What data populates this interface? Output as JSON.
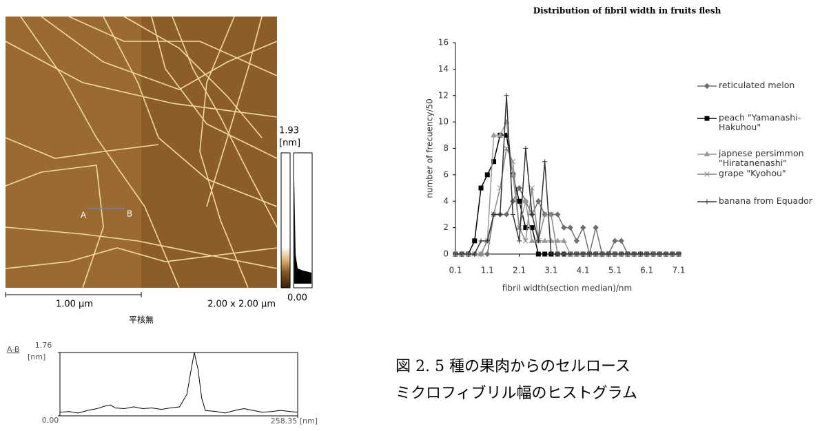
{
  "chart_data": [
    {
      "type": "line",
      "title": "Distribution of fibril width in fruits flesh",
      "x_label": "fibril width(section median)/nm",
      "y_label": "number of frecuency/50",
      "x": [
        0.1,
        0.3,
        0.5,
        0.7,
        0.9,
        1.1,
        1.3,
        1.5,
        1.7,
        1.9,
        2.1,
        2.3,
        2.5,
        2.7,
        2.9,
        3.1,
        3.3,
        3.5,
        3.7,
        3.9,
        4.1,
        4.3,
        4.5,
        4.7,
        4.9,
        5.1,
        5.3,
        5.5,
        5.7,
        5.9,
        6.1,
        6.3,
        6.5,
        6.7,
        6.9,
        7.1
      ],
      "xlim": [
        0.1,
        7.1
      ],
      "xticks": [
        0.1,
        1.1,
        2.1,
        3.1,
        4.1,
        5.1,
        6.1,
        7.1
      ],
      "ylim": [
        0,
        16
      ],
      "yticks": [
        0,
        2,
        4,
        6,
        8,
        10,
        12,
        14,
        16
      ],
      "series": [
        {
          "name": "reticulated melon",
          "color": "#6e6e6e",
          "marker": "diamond",
          "values": [
            0,
            0,
            0,
            0,
            0,
            0,
            3,
            3,
            3,
            4,
            5,
            4,
            3,
            4,
            3,
            3,
            3,
            2,
            2,
            1,
            2,
            0,
            2,
            0,
            0,
            1,
            1,
            0,
            0,
            0,
            0,
            0,
            0,
            0,
            0,
            0
          ]
        },
        {
          "name": "peach \"Yamanashi-Hakuhou\"",
          "color": "#000000",
          "marker": "square",
          "values": [
            0,
            0,
            0,
            1,
            5,
            6,
            7,
            9,
            9,
            6,
            4,
            2,
            2,
            0,
            0,
            0,
            0,
            0,
            0,
            0,
            0,
            0,
            0,
            0,
            0,
            0,
            0,
            0,
            0,
            0,
            0,
            0,
            0,
            0,
            0,
            0
          ]
        },
        {
          "name": "japnese persimmon \"Hiratanenashi\"",
          "color": "#9a9a9a",
          "marker": "triangle",
          "values": [
            0,
            0,
            0,
            0,
            0,
            1,
            9,
            9,
            10,
            6,
            2,
            4,
            1,
            1,
            1,
            1,
            1,
            1,
            0,
            0,
            0,
            0,
            0,
            0,
            0,
            0,
            0,
            0,
            0,
            0,
            0,
            0,
            0,
            0,
            0,
            0
          ]
        },
        {
          "name": "grape \"Kyohou\"",
          "color": "#888888",
          "marker": "x",
          "values": [
            0,
            0,
            0,
            0,
            0,
            1,
            3,
            5,
            8,
            7,
            2,
            1,
            5,
            1,
            3,
            3,
            0,
            0,
            0,
            0,
            0,
            0,
            0,
            0,
            0,
            0,
            0,
            0,
            0,
            0,
            0,
            0,
            0,
            0,
            0,
            0
          ]
        },
        {
          "name": "banana from Equador",
          "color": "#333333",
          "marker": "plus",
          "values": [
            0,
            0,
            0,
            0,
            1,
            1,
            3,
            3,
            12,
            3,
            1,
            8,
            3,
            1,
            7,
            0,
            0,
            0,
            0,
            0,
            0,
            0,
            0,
            0,
            0,
            0,
            0,
            0,
            0,
            0,
            0,
            0,
            0,
            0,
            0,
            0
          ]
        }
      ]
    },
    {
      "type": "profile",
      "title": "A-B",
      "y_unit": "[nm]",
      "x": [
        0,
        10,
        20,
        30,
        40,
        50,
        55,
        60,
        70,
        80,
        90,
        100,
        110,
        120,
        130,
        138,
        142,
        146,
        150,
        154,
        158,
        170,
        180,
        190,
        200,
        210,
        220,
        230,
        240,
        250,
        258.35
      ],
      "values": [
        0.1,
        0.12,
        0.08,
        0.15,
        0.2,
        0.28,
        0.3,
        0.22,
        0.2,
        0.25,
        0.2,
        0.22,
        0.18,
        0.22,
        0.25,
        0.6,
        1.2,
        1.76,
        1.3,
        0.5,
        0.15,
        0.12,
        0.08,
        0.15,
        0.2,
        0.15,
        0.1,
        0.12,
        0.15,
        0.12,
        0.1
      ],
      "xlim": [
        0,
        258.35
      ],
      "xticks": [
        {
          "value": 258.35,
          "label": "258.35 [nm]"
        }
      ],
      "ylim": [
        0,
        1.76
      ],
      "yticks": [
        {
          "value": 0,
          "label": "0.00"
        },
        1.76
      ],
      "color": "#000000"
    }
  ],
  "afm": {
    "scale_max": "1.93",
    "scale_unit": "[nm]",
    "scale_min": "0.00",
    "scale_bar": "1.00 µm",
    "size": "2.00 x 2.00 µm",
    "sample": "平核無",
    "point_a": "A",
    "point_b": "B"
  },
  "caption": {
    "line1": "図 2. 5 種の果肉からのセルロース",
    "line2": "ミクロフィブリル幅のヒストグラム"
  }
}
